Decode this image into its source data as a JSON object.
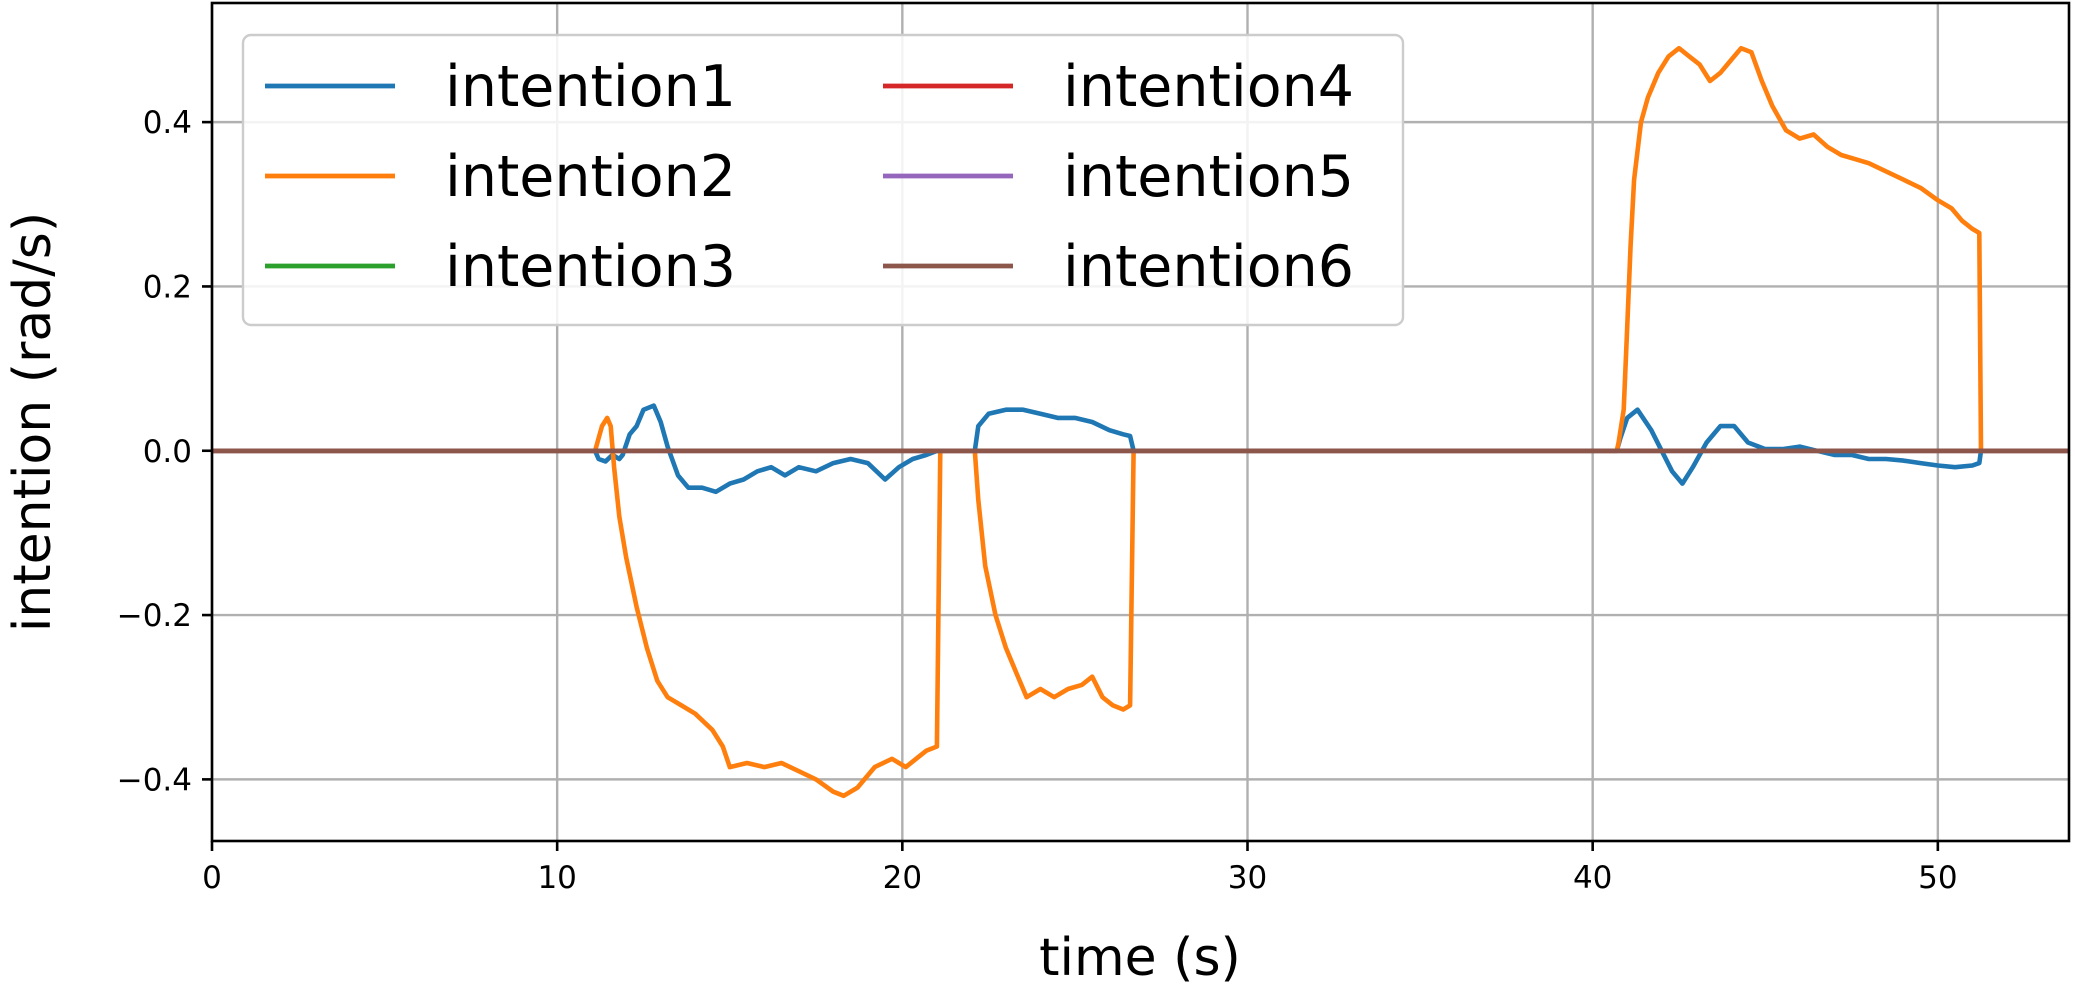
{
  "chart_data": {
    "type": "line",
    "title": "",
    "xlabel": "time (s)",
    "ylabel": "intention (rad/s)",
    "xlim": [
      0,
      53.8
    ],
    "ylim": [
      -0.475,
      0.545
    ],
    "xticks": [
      0,
      10,
      20,
      30,
      40,
      50
    ],
    "xtick_labels": [
      "0",
      "10",
      "20",
      "30",
      "40",
      "50"
    ],
    "yticks": [
      -0.4,
      -0.2,
      0.0,
      0.2,
      0.4
    ],
    "ytick_labels": [
      "−0.4",
      "−0.2",
      "0.0",
      "0.2",
      "0.4"
    ],
    "grid": true,
    "legend_placement": "top-left",
    "legend_columns": 2,
    "series": [
      {
        "name": "intention1",
        "color": "#1f77b4",
        "points": [
          [
            0,
            0
          ],
          [
            11.1,
            0
          ],
          [
            11.2,
            -0.01
          ],
          [
            11.4,
            -0.013
          ],
          [
            11.6,
            -0.005
          ],
          [
            11.8,
            -0.01
          ],
          [
            11.9,
            -0.005
          ],
          [
            12.1,
            0.02
          ],
          [
            12.3,
            0.03
          ],
          [
            12.5,
            0.05
          ],
          [
            12.8,
            0.055
          ],
          [
            13.0,
            0.035
          ],
          [
            13.2,
            0.005
          ],
          [
            13.5,
            -0.03
          ],
          [
            13.8,
            -0.045
          ],
          [
            14.2,
            -0.045
          ],
          [
            14.6,
            -0.05
          ],
          [
            15.0,
            -0.04
          ],
          [
            15.4,
            -0.035
          ],
          [
            15.8,
            -0.025
          ],
          [
            16.2,
            -0.02
          ],
          [
            16.6,
            -0.03
          ],
          [
            17.0,
            -0.02
          ],
          [
            17.5,
            -0.025
          ],
          [
            18.0,
            -0.015
          ],
          [
            18.5,
            -0.01
          ],
          [
            19.0,
            -0.015
          ],
          [
            19.5,
            -0.035
          ],
          [
            19.9,
            -0.02
          ],
          [
            20.3,
            -0.01
          ],
          [
            20.7,
            -0.005
          ],
          [
            21.0,
            0
          ],
          [
            22.1,
            0
          ],
          [
            22.2,
            0.03
          ],
          [
            22.5,
            0.045
          ],
          [
            23.0,
            0.05
          ],
          [
            23.5,
            0.05
          ],
          [
            24.0,
            0.045
          ],
          [
            24.5,
            0.04
          ],
          [
            25.0,
            0.04
          ],
          [
            25.5,
            0.035
          ],
          [
            26.0,
            0.025
          ],
          [
            26.4,
            0.02
          ],
          [
            26.6,
            0.018
          ],
          [
            26.7,
            0
          ],
          [
            40.7,
            0
          ],
          [
            40.8,
            0.015
          ],
          [
            41.0,
            0.04
          ],
          [
            41.3,
            0.05
          ],
          [
            41.7,
            0.025
          ],
          [
            42.0,
            0.0
          ],
          [
            42.3,
            -0.025
          ],
          [
            42.6,
            -0.04
          ],
          [
            42.9,
            -0.02
          ],
          [
            43.3,
            0.01
          ],
          [
            43.7,
            0.03
          ],
          [
            44.1,
            0.03
          ],
          [
            44.5,
            0.01
          ],
          [
            45.0,
            0.002
          ],
          [
            45.5,
            0.002
          ],
          [
            46.0,
            0.005
          ],
          [
            46.5,
            0.0
          ],
          [
            47.0,
            -0.005
          ],
          [
            47.5,
            -0.005
          ],
          [
            48.0,
            -0.01
          ],
          [
            48.5,
            -0.01
          ],
          [
            49.0,
            -0.012
          ],
          [
            49.5,
            -0.015
          ],
          [
            50.0,
            -0.018
          ],
          [
            50.5,
            -0.02
          ],
          [
            51.0,
            -0.018
          ],
          [
            51.2,
            -0.015
          ],
          [
            51.25,
            0
          ],
          [
            53.8,
            0
          ]
        ]
      },
      {
        "name": "intention2",
        "color": "#ff7f0e",
        "points": [
          [
            0,
            0
          ],
          [
            11.1,
            0
          ],
          [
            11.3,
            0.03
          ],
          [
            11.45,
            0.04
          ],
          [
            11.55,
            0.03
          ],
          [
            11.65,
            -0.02
          ],
          [
            11.8,
            -0.08
          ],
          [
            12.0,
            -0.13
          ],
          [
            12.3,
            -0.19
          ],
          [
            12.6,
            -0.24
          ],
          [
            12.9,
            -0.28
          ],
          [
            13.2,
            -0.3
          ],
          [
            13.6,
            -0.31
          ],
          [
            14.0,
            -0.32
          ],
          [
            14.5,
            -0.34
          ],
          [
            14.8,
            -0.36
          ],
          [
            15.0,
            -0.385
          ],
          [
            15.5,
            -0.38
          ],
          [
            16.0,
            -0.385
          ],
          [
            16.5,
            -0.38
          ],
          [
            17.0,
            -0.39
          ],
          [
            17.5,
            -0.4
          ],
          [
            18.0,
            -0.415
          ],
          [
            18.3,
            -0.42
          ],
          [
            18.7,
            -0.41
          ],
          [
            19.2,
            -0.385
          ],
          [
            19.7,
            -0.375
          ],
          [
            20.1,
            -0.385
          ],
          [
            20.4,
            -0.375
          ],
          [
            20.7,
            -0.365
          ],
          [
            21.0,
            -0.36
          ],
          [
            21.1,
            0
          ],
          [
            22.1,
            0
          ],
          [
            22.2,
            -0.06
          ],
          [
            22.4,
            -0.14
          ],
          [
            22.7,
            -0.2
          ],
          [
            23.0,
            -0.24
          ],
          [
            23.3,
            -0.27
          ],
          [
            23.6,
            -0.3
          ],
          [
            24.0,
            -0.29
          ],
          [
            24.4,
            -0.3
          ],
          [
            24.8,
            -0.29
          ],
          [
            25.2,
            -0.285
          ],
          [
            25.5,
            -0.275
          ],
          [
            25.8,
            -0.3
          ],
          [
            26.1,
            -0.31
          ],
          [
            26.4,
            -0.315
          ],
          [
            26.6,
            -0.31
          ],
          [
            26.7,
            0
          ],
          [
            40.7,
            0
          ],
          [
            40.75,
            0.01
          ],
          [
            40.9,
            0.05
          ],
          [
            41.0,
            0.15
          ],
          [
            41.1,
            0.25
          ],
          [
            41.2,
            0.33
          ],
          [
            41.4,
            0.4
          ],
          [
            41.6,
            0.43
          ],
          [
            41.9,
            0.46
          ],
          [
            42.2,
            0.48
          ],
          [
            42.5,
            0.49
          ],
          [
            42.8,
            0.48
          ],
          [
            43.1,
            0.47
          ],
          [
            43.4,
            0.45
          ],
          [
            43.7,
            0.46
          ],
          [
            44.0,
            0.475
          ],
          [
            44.3,
            0.49
          ],
          [
            44.6,
            0.485
          ],
          [
            44.9,
            0.45
          ],
          [
            45.2,
            0.42
          ],
          [
            45.6,
            0.39
          ],
          [
            46.0,
            0.38
          ],
          [
            46.4,
            0.385
          ],
          [
            46.8,
            0.37
          ],
          [
            47.2,
            0.36
          ],
          [
            47.6,
            0.355
          ],
          [
            48.0,
            0.35
          ],
          [
            48.5,
            0.34
          ],
          [
            49.0,
            0.33
          ],
          [
            49.5,
            0.32
          ],
          [
            50.0,
            0.305
          ],
          [
            50.4,
            0.295
          ],
          [
            50.7,
            0.28
          ],
          [
            51.0,
            0.27
          ],
          [
            51.2,
            0.265
          ],
          [
            51.25,
            0
          ],
          [
            53.8,
            0
          ]
        ]
      },
      {
        "name": "intention3",
        "color": "#2ca02c",
        "points": [
          [
            0,
            0
          ],
          [
            53.8,
            0
          ]
        ]
      },
      {
        "name": "intention4",
        "color": "#d62728",
        "points": [
          [
            0,
            0
          ],
          [
            53.8,
            0
          ]
        ]
      },
      {
        "name": "intention5",
        "color": "#9467bd",
        "points": [
          [
            0,
            0
          ],
          [
            53.8,
            0
          ]
        ]
      },
      {
        "name": "intention6",
        "color": "#8c564b",
        "points": [
          [
            0,
            0
          ],
          [
            53.8,
            0
          ]
        ]
      }
    ]
  }
}
